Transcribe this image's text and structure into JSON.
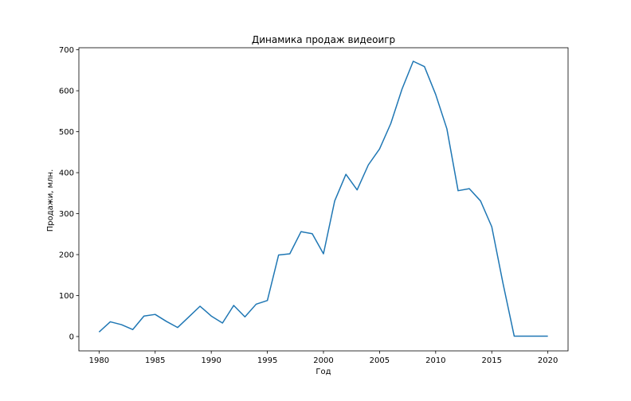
{
  "chart_data": {
    "type": "line",
    "title": "Динамика продаж видеоигр",
    "xlabel": "Год",
    "ylabel": "Продажи, млн.",
    "xlim": [
      1978.2,
      2021.8
    ],
    "ylim": [
      -35,
      705
    ],
    "xticks": [
      1980,
      1985,
      1990,
      1995,
      2000,
      2005,
      2010,
      2015,
      2020
    ],
    "yticks": [
      0,
      100,
      200,
      300,
      400,
      500,
      600,
      700
    ],
    "grid": false,
    "colors": {
      "line": "#1f77b4",
      "axes": "#000000",
      "background": "#ffffff"
    },
    "series": [
      {
        "x": [
          1980,
          1981,
          1982,
          1983,
          1984,
          1985,
          1986,
          1987,
          1988,
          1989,
          1990,
          1991,
          1992,
          1993,
          1994,
          1995,
          1996,
          1997,
          1998,
          1999,
          2000,
          2001,
          2002,
          2003,
          2004,
          2005,
          2006,
          2007,
          2008,
          2009,
          2010,
          2011,
          2012,
          2013,
          2014,
          2015,
          2016,
          2017,
          2020
        ],
        "y": [
          11,
          36,
          29,
          17,
          50,
          54,
          37,
          22,
          48,
          74,
          50,
          33,
          76,
          48,
          79,
          88,
          199,
          202,
          256,
          251,
          202,
          331,
          396,
          358,
          419,
          458,
          520,
          604,
          672,
          659,
          591,
          507,
          356,
          361,
          331,
          268,
          130,
          1,
          1
        ]
      }
    ]
  }
}
